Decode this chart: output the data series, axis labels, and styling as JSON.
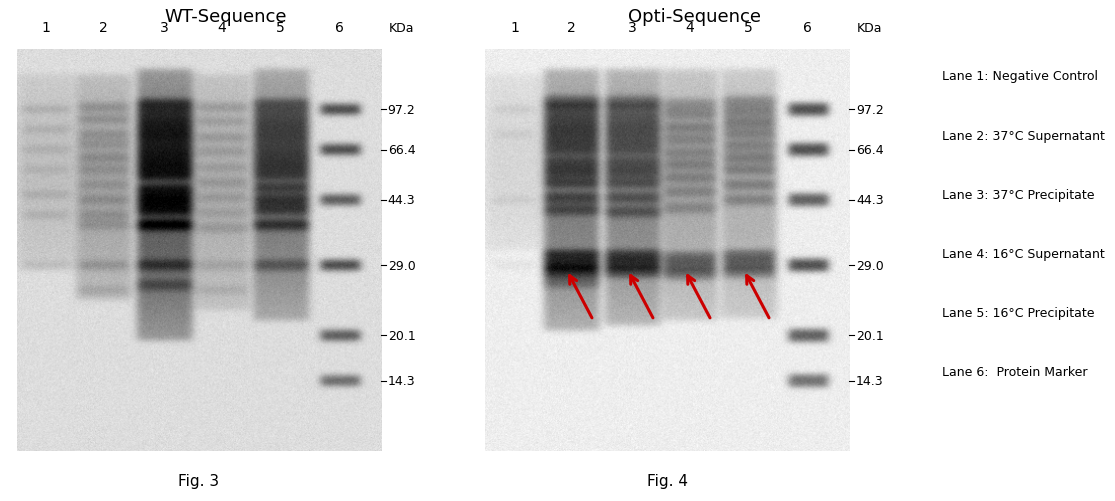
{
  "title_left": "WT-Sequence",
  "title_right": "Opti-Sequence",
  "fig_label_left": "Fig. 3",
  "fig_label_right": "Fig. 4",
  "lane_labels": [
    "1",
    "2",
    "3",
    "4",
    "5",
    "6"
  ],
  "kda_labels": [
    "97.2",
    "66.4",
    "44.3",
    "29.0",
    "20.1",
    "14.3"
  ],
  "legend_entries": [
    "Lane 1: Negative Control",
    "Lane 2: 37°C Supernatant",
    "Lane 3: 37°C Precipitate",
    "Lane 4: 16°C Supernatant",
    "Lane 5: 16°C Precipitate",
    "Lane 6:  Protein Marker"
  ],
  "background_color": "#ffffff",
  "arrow_color": "#cc0000",
  "title_fontsize": 13,
  "lane_label_fontsize": 10,
  "kda_fontsize": 9,
  "legend_fontsize": 9,
  "fig_label_fontsize": 11,
  "kda_label": "KDa"
}
